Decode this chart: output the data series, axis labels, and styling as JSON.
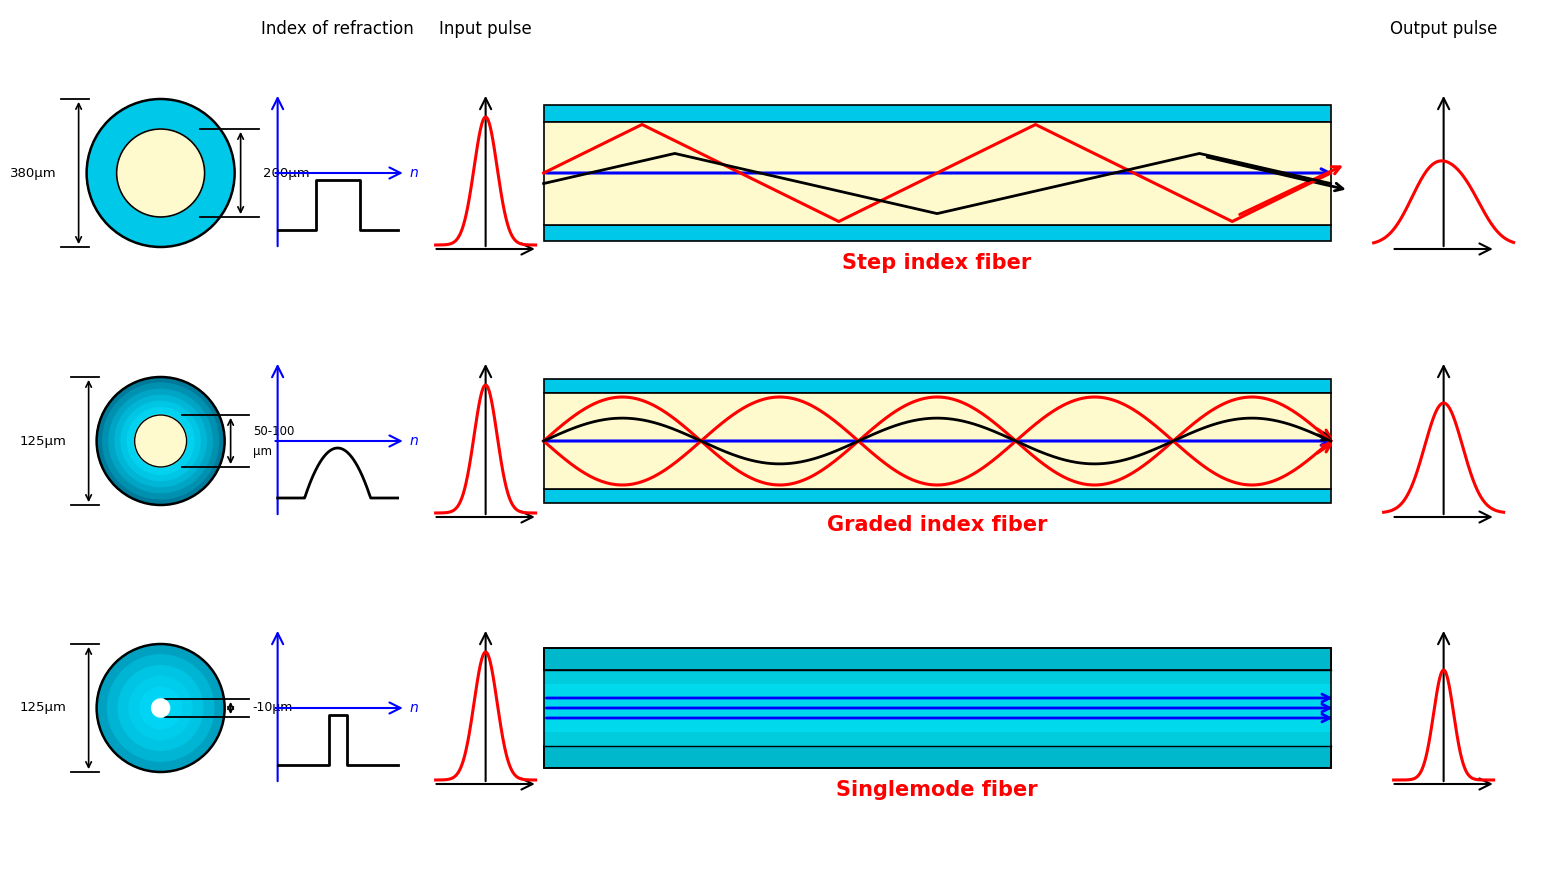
{
  "title_index": "Index of refraction",
  "title_input": "Input pulse",
  "title_output": "Output pulse",
  "fiber_labels": [
    "Step index fiber",
    "Graded index fiber",
    "Singlemode fiber"
  ],
  "dim_labels_left": [
    "380μm",
    "125μm",
    "125μm"
  ],
  "dim_labels_right_1": "200μm",
  "dim_labels_right_2a": "50-100",
  "dim_labels_right_2b": "μm",
  "dim_labels_right_3": "-10μm",
  "color_cyan_bright": "#00C8E8",
  "color_cyan_mid": "#00AACC",
  "color_cyan_dark": "#0088AA",
  "color_teal": "#00BBCC",
  "color_teal2": "#00CCDD",
  "color_cream": "#FFFACD",
  "color_red": "#FF0000",
  "color_blue": "#0000FF",
  "color_black": "#000000",
  "bg_color": "#FFFFFF",
  "header_fontsize": 12,
  "label_fontsize": 10,
  "fiber_label_fontsize": 15
}
